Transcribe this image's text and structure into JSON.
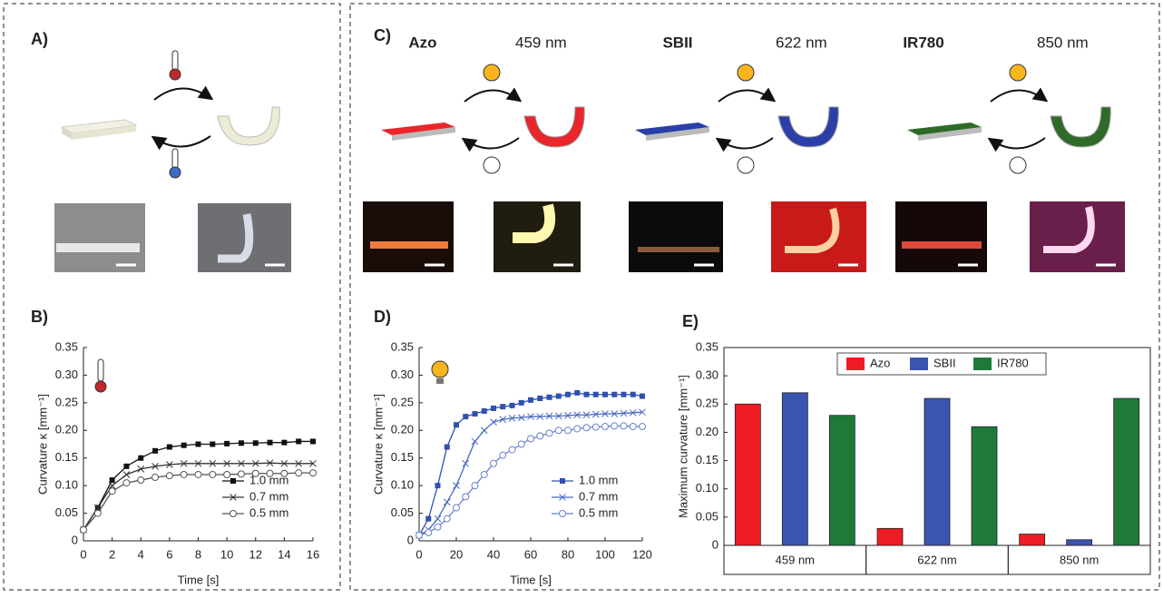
{
  "panels": {
    "a": "A)",
    "b": "B)",
    "c": "C)",
    "d": "D)",
    "e": "E)"
  },
  "dyes": [
    {
      "name": "Azo",
      "color": "#e8262b",
      "wavelength": "459 nm"
    },
    {
      "name": "SBII",
      "color": "#2c3fa8",
      "wavelength": "622 nm"
    },
    {
      "name": "IR780",
      "color": "#2e6b28",
      "wavelength": "850 nm"
    }
  ],
  "chart_data": [
    {
      "type": "line",
      "xlabel": "Time [s]",
      "ylabel": "Curvature κ [mm⁻¹]",
      "x": [
        0,
        1,
        2,
        3,
        4,
        5,
        6,
        7,
        8,
        9,
        10,
        11,
        12,
        13,
        14,
        15,
        16
      ],
      "xlim": [
        0,
        16
      ],
      "xticks": [
        0,
        2,
        4,
        6,
        8,
        10,
        12,
        14,
        16
      ],
      "ylim": [
        0,
        0.35
      ],
      "yticks": [
        0,
        0.05,
        {
          "value": 0.1,
          "label": "0.10"
        },
        0.15,
        {
          "value": 0.2,
          "label": "0.20"
        },
        0.25,
        {
          "value": 0.3,
          "label": "0.30"
        },
        0.35
      ],
      "legend": "lower right",
      "series": [
        {
          "name": "1.0 mm",
          "color": "#111111",
          "marker": "square",
          "values": [
            0.02,
            0.06,
            0.11,
            0.135,
            0.15,
            0.163,
            0.17,
            0.173,
            0.175,
            0.175,
            0.176,
            0.177,
            0.177,
            0.178,
            0.178,
            0.18,
            0.18
          ]
        },
        {
          "name": "0.7 mm",
          "color": "#333333",
          "marker": "x",
          "values": [
            0.02,
            0.06,
            0.1,
            0.12,
            0.13,
            0.135,
            0.138,
            0.14,
            0.14,
            0.14,
            0.14,
            0.14,
            0.14,
            0.141,
            0.14,
            0.14,
            0.14
          ]
        },
        {
          "name": "0.5 mm",
          "color": "#555555",
          "marker": "circle",
          "values": [
            0.02,
            0.05,
            0.09,
            0.105,
            0.11,
            0.115,
            0.118,
            0.12,
            0.12,
            0.12,
            0.12,
            0.121,
            0.122,
            0.122,
            0.122,
            0.123,
            0.123
          ]
        }
      ]
    },
    {
      "type": "line",
      "xlabel": "Time [s]",
      "ylabel": "Curvature κ [mm⁻¹]",
      "x": [
        0,
        5,
        10,
        15,
        20,
        25,
        30,
        35,
        40,
        45,
        50,
        55,
        60,
        65,
        70,
        75,
        80,
        85,
        90,
        95,
        100,
        105,
        110,
        115,
        120
      ],
      "xlim": [
        0,
        120
      ],
      "xticks": [
        0,
        20,
        40,
        60,
        80,
        100,
        120
      ],
      "ylim": [
        0,
        0.35
      ],
      "yticks": [
        0,
        0.05,
        {
          "value": 0.1,
          "label": "0.10"
        },
        0.15,
        {
          "value": 0.2,
          "label": "0.20"
        },
        0.25,
        {
          "value": 0.3,
          "label": "0.30"
        },
        0.35
      ],
      "legend": "lower right",
      "series": [
        {
          "name": "1.0 mm",
          "color": "#3050b0",
          "marker": "square",
          "values": [
            0.01,
            0.04,
            0.1,
            0.17,
            0.21,
            0.225,
            0.23,
            0.235,
            0.24,
            0.243,
            0.245,
            0.25,
            0.255,
            0.258,
            0.26,
            0.262,
            0.265,
            0.268,
            0.265,
            0.265,
            0.265,
            0.265,
            0.265,
            0.265,
            0.262
          ]
        },
        {
          "name": "0.7 mm",
          "color": "#4a68c0",
          "marker": "x",
          "values": [
            0.01,
            0.02,
            0.04,
            0.07,
            0.1,
            0.14,
            0.18,
            0.2,
            0.215,
            0.22,
            0.222,
            0.223,
            0.225,
            0.225,
            0.226,
            0.226,
            0.227,
            0.228,
            0.228,
            0.229,
            0.23,
            0.23,
            0.231,
            0.232,
            0.233
          ]
        },
        {
          "name": "0.5 mm",
          "color": "#6a80cc",
          "marker": "circle",
          "values": [
            0.01,
            0.015,
            0.025,
            0.04,
            0.06,
            0.08,
            0.1,
            0.12,
            0.14,
            0.155,
            0.165,
            0.175,
            0.185,
            0.19,
            0.195,
            0.2,
            0.2,
            0.203,
            0.205,
            0.206,
            0.207,
            0.208,
            0.208,
            0.207,
            0.207
          ]
        }
      ]
    },
    {
      "type": "bar",
      "ylabel": "Maximum curvature [mm⁻¹]",
      "categories": [
        "459 nm",
        "622 nm",
        "850 nm"
      ],
      "ylim": [
        0,
        0.35
      ],
      "yticks": [
        0,
        0.05,
        {
          "value": 0.1,
          "label": "0.10"
        },
        0.15,
        {
          "value": 0.2,
          "label": "0.20"
        },
        0.25,
        {
          "value": 0.3,
          "label": "0.30"
        },
        0.35
      ],
      "legend": "upper center",
      "series": [
        {
          "name": "Azo",
          "color": "#ee1c25",
          "values": [
            0.25,
            0.03,
            0.02
          ]
        },
        {
          "name": "SBII",
          "color": "#3a55b0",
          "values": [
            0.27,
            0.26,
            0.01
          ]
        },
        {
          "name": "IR780",
          "color": "#1f7a3a",
          "values": [
            0.23,
            0.21,
            0.26
          ]
        }
      ]
    }
  ]
}
